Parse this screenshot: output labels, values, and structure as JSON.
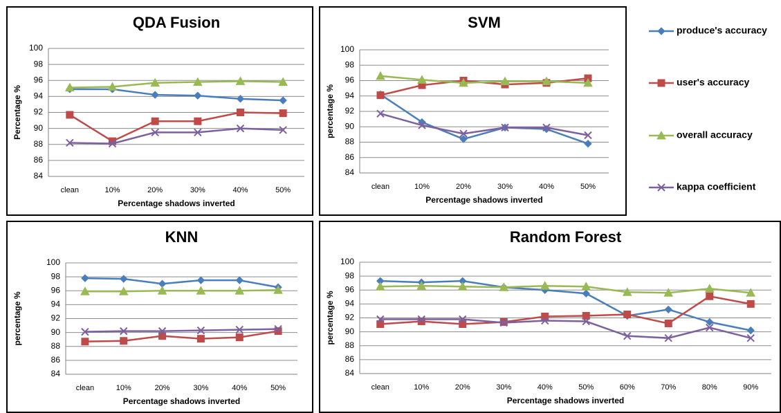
{
  "chart_data": [
    {
      "type": "line",
      "title": "QDA Fusion",
      "x_label": "Percentage shadows inverted",
      "y_label": "Percentage %",
      "categories": [
        "clean",
        "10%",
        "20%",
        "30%",
        "40%",
        "50%"
      ],
      "ylim": [
        84,
        100
      ],
      "yticks": [
        84,
        86,
        88,
        90,
        92,
        94,
        96,
        98,
        100
      ],
      "grid": true,
      "series": [
        {
          "name": "produce's accuracy",
          "color": "#4a7ebb",
          "marker": "diamond",
          "values": [
            94.9,
            94.9,
            94.2,
            94.1,
            93.7,
            93.5
          ]
        },
        {
          "name": "user's accuracy",
          "color": "#be4b48",
          "marker": "square",
          "values": [
            91.7,
            88.4,
            90.9,
            90.9,
            92.0,
            91.9
          ]
        },
        {
          "name": "overall accuracy",
          "color": "#98b954",
          "marker": "triangle",
          "values": [
            95.1,
            95.2,
            95.7,
            95.8,
            95.9,
            95.8
          ]
        },
        {
          "name": "kappa coefficient",
          "color": "#7d60a0",
          "marker": "x",
          "values": [
            88.2,
            88.1,
            89.5,
            89.5,
            90.0,
            89.8
          ]
        }
      ]
    },
    {
      "type": "line",
      "title": "SVM",
      "x_label": "Percentage shadows inverted",
      "y_label": "percentage %",
      "categories": [
        "clean",
        "10%",
        "20%",
        "30%",
        "40%",
        "50%"
      ],
      "ylim": [
        84,
        100
      ],
      "yticks": [
        84,
        86,
        88,
        90,
        92,
        94,
        96,
        98,
        100
      ],
      "grid": true,
      "series": [
        {
          "name": "produce's accuracy",
          "color": "#4a7ebb",
          "marker": "diamond",
          "values": [
            94.2,
            90.6,
            88.4,
            89.9,
            89.7,
            87.8
          ]
        },
        {
          "name": "user's accuracy",
          "color": "#be4b48",
          "marker": "square",
          "values": [
            94.1,
            95.4,
            96.0,
            95.5,
            95.7,
            96.3
          ]
        },
        {
          "name": "overall accuracy",
          "color": "#98b954",
          "marker": "triangle",
          "values": [
            96.6,
            96.1,
            95.7,
            95.9,
            95.9,
            95.7
          ]
        },
        {
          "name": "kappa coefficient",
          "color": "#7d60a0",
          "marker": "x",
          "values": [
            91.7,
            90.2,
            89.1,
            89.9,
            89.9,
            88.9
          ]
        }
      ]
    },
    {
      "type": "line",
      "title": "KNN",
      "x_label": "Percentage shadows inverted",
      "y_label": "percentage %",
      "categories": [
        "clean",
        "10%",
        "20%",
        "30%",
        "40%",
        "50%"
      ],
      "ylim": [
        84,
        100
      ],
      "yticks": [
        84,
        86,
        88,
        90,
        92,
        94,
        96,
        98,
        100
      ],
      "grid": true,
      "series": [
        {
          "name": "produce's accuracy",
          "color": "#4a7ebb",
          "marker": "diamond",
          "values": [
            97.8,
            97.7,
            97.0,
            97.5,
            97.5,
            96.5
          ]
        },
        {
          "name": "user's accuracy",
          "color": "#be4b48",
          "marker": "square",
          "values": [
            88.7,
            88.8,
            89.5,
            89.1,
            89.3,
            90.2
          ]
        },
        {
          "name": "overall accuracy",
          "color": "#98b954",
          "marker": "triangle",
          "values": [
            95.9,
            95.9,
            96.0,
            96.0,
            96.0,
            96.1
          ]
        },
        {
          "name": "kappa coefficient",
          "color": "#7d60a0",
          "marker": "x",
          "values": [
            90.1,
            90.2,
            90.2,
            90.3,
            90.4,
            90.5
          ]
        }
      ]
    },
    {
      "type": "line",
      "title": "Random Forest",
      "x_label": "Percentage shadows inverted",
      "y_label": "percentage %",
      "categories": [
        "clean",
        "10%",
        "20%",
        "30%",
        "40%",
        "50%",
        "60%",
        "70%",
        "80%",
        "90%"
      ],
      "ylim": [
        84,
        100
      ],
      "yticks": [
        84,
        86,
        88,
        90,
        92,
        94,
        96,
        98,
        100
      ],
      "grid": true,
      "series": [
        {
          "name": "produce's accuracy",
          "color": "#4a7ebb",
          "marker": "diamond",
          "values": [
            97.3,
            97.1,
            97.3,
            96.4,
            96.0,
            95.5,
            92.3,
            93.2,
            91.4,
            90.2
          ]
        },
        {
          "name": "user's accuracy",
          "color": "#be4b48",
          "marker": "square",
          "values": [
            91.1,
            91.5,
            91.1,
            91.4,
            92.2,
            92.3,
            92.5,
            91.2,
            95.1,
            94.0
          ]
        },
        {
          "name": "overall accuracy",
          "color": "#98b954",
          "marker": "triangle",
          "values": [
            96.5,
            96.6,
            96.5,
            96.4,
            96.6,
            96.5,
            95.7,
            95.6,
            96.2,
            95.6
          ]
        },
        {
          "name": "kappa coefficient",
          "color": "#7d60a0",
          "marker": "x",
          "values": [
            91.8,
            91.8,
            91.8,
            91.3,
            91.6,
            91.5,
            89.4,
            89.1,
            90.6,
            89.1
          ]
        }
      ]
    }
  ]
}
